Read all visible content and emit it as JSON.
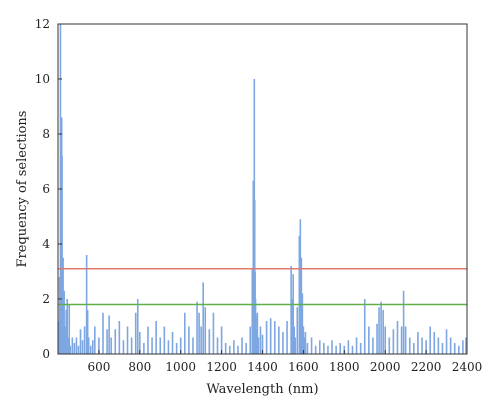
{
  "chart_data": {
    "type": "bar",
    "xlabel": "Wavelength (nm)",
    "ylabel": "Frequency of selections",
    "xlim": [
      400,
      2400
    ],
    "ylim": [
      0,
      12
    ],
    "x_ticks": [
      600,
      800,
      1000,
      1200,
      1400,
      1600,
      1800,
      2000,
      2200,
      2400
    ],
    "y_ticks": [
      0,
      2,
      4,
      6,
      8,
      10,
      12
    ],
    "grid": false,
    "legend": "none",
    "bar_color": "#7ea6e0",
    "thresholds": [
      {
        "value": 3.1,
        "color": "#e07a6e"
      },
      {
        "value": 1.8,
        "color": "#5fb04a"
      }
    ],
    "series": [
      {
        "x": [
          405,
          408,
          412,
          415,
          418,
          420,
          425,
          430,
          435,
          440,
          445,
          450,
          455,
          460,
          470,
          480,
          490,
          500,
          510,
          520,
          530,
          540,
          545,
          550,
          560,
          570,
          580,
          600,
          620,
          640,
          650,
          660,
          680,
          700,
          720,
          740,
          760,
          780,
          790,
          800,
          820,
          840,
          860,
          880,
          900,
          920,
          940,
          960,
          980,
          1000,
          1020,
          1040,
          1060,
          1080,
          1090,
          1100,
          1110,
          1120,
          1140,
          1160,
          1180,
          1200,
          1220,
          1240,
          1260,
          1280,
          1300,
          1320,
          1340,
          1350,
          1355,
          1358,
          1360,
          1362,
          1364,
          1366,
          1368,
          1370,
          1375,
          1380,
          1390,
          1400,
          1420,
          1440,
          1460,
          1480,
          1500,
          1520,
          1540,
          1545,
          1550,
          1555,
          1560,
          1570,
          1580,
          1585,
          1590,
          1595,
          1600,
          1605,
          1610,
          1620,
          1640,
          1660,
          1680,
          1700,
          1720,
          1740,
          1760,
          1780,
          1800,
          1820,
          1840,
          1860,
          1880,
          1900,
          1920,
          1940,
          1960,
          1970,
          1980,
          1990,
          2000,
          2020,
          2040,
          2060,
          2080,
          2090,
          2100,
          2120,
          2140,
          2160,
          2180,
          2200,
          2220,
          2240,
          2260,
          2280,
          2300,
          2320,
          2340,
          2360,
          2380,
          2395
        ],
        "values": [
          1.2,
          2.8,
          12.0,
          4.2,
          8.6,
          7.2,
          3.5,
          2.3,
          1.0,
          1.6,
          2.0,
          0.6,
          1.8,
          0.3,
          0.6,
          0.4,
          0.6,
          0.3,
          0.9,
          0.5,
          1.0,
          3.6,
          1.6,
          0.6,
          0.3,
          0.5,
          1.0,
          0.6,
          1.5,
          0.9,
          1.4,
          0.6,
          0.9,
          1.2,
          0.5,
          1.0,
          0.6,
          1.5,
          2.0,
          0.8,
          0.4,
          1.0,
          0.6,
          1.2,
          0.6,
          1.0,
          0.5,
          0.8,
          0.4,
          0.6,
          1.5,
          1.0,
          0.6,
          1.9,
          1.5,
          1.0,
          2.6,
          1.7,
          0.9,
          1.5,
          0.6,
          1.0,
          0.4,
          0.3,
          0.5,
          0.3,
          0.6,
          0.4,
          1.0,
          3.1,
          6.3,
          4.5,
          10.0,
          5.6,
          3.0,
          2.0,
          1.4,
          0.9,
          1.5,
          0.6,
          1.0,
          0.7,
          1.2,
          1.3,
          1.2,
          1.0,
          0.8,
          1.2,
          3.2,
          2.0,
          2.9,
          1.0,
          0.6,
          1.7,
          4.3,
          4.9,
          3.5,
          2.2,
          1.0,
          0.6,
          0.8,
          0.4,
          0.6,
          0.3,
          0.5,
          0.4,
          0.3,
          0.5,
          0.3,
          0.4,
          0.3,
          0.5,
          0.3,
          0.6,
          0.4,
          2.0,
          1.0,
          0.6,
          1.1,
          1.7,
          1.9,
          1.6,
          1.0,
          0.6,
          0.9,
          1.2,
          1.0,
          2.3,
          1.0,
          0.6,
          0.4,
          0.8,
          0.6,
          0.5,
          1.0,
          0.8,
          0.6,
          0.4,
          0.9,
          0.6,
          0.4,
          0.3,
          0.5,
          0.6
        ]
      }
    ]
  }
}
